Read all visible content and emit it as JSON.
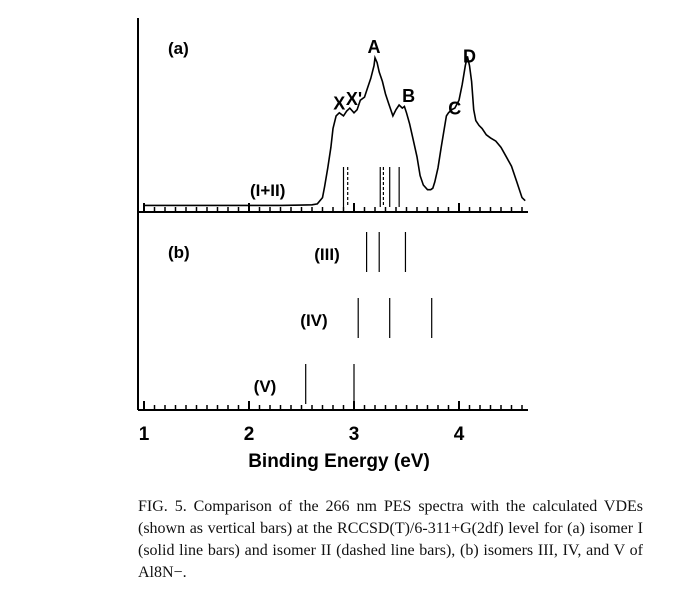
{
  "chart_data": {
    "type": "line",
    "xlabel": "Binding Energy (eV)",
    "xlim": [
      1,
      4.65
    ],
    "xticks": [
      "1",
      "2",
      "3",
      "4"
    ],
    "panel_a": {
      "label": "(a)",
      "trace_label": "(I+II)",
      "spectrum": {
        "x": [
          1.0,
          1.5,
          2.0,
          2.3,
          2.5,
          2.6,
          2.65,
          2.7,
          2.72,
          2.75,
          2.78,
          2.8,
          2.83,
          2.86,
          2.9,
          2.93,
          2.96,
          3.0,
          3.03,
          3.06,
          3.1,
          3.13,
          3.16,
          3.19,
          3.2,
          3.22,
          3.24,
          3.27,
          3.3,
          3.33,
          3.37,
          3.4,
          3.43,
          3.46,
          3.48,
          3.5,
          3.53,
          3.56,
          3.6,
          3.63,
          3.66,
          3.7,
          3.73,
          3.75,
          3.77,
          3.8,
          3.83,
          3.86,
          3.88,
          3.9,
          3.93,
          3.96,
          4.0,
          4.03,
          4.06,
          4.08,
          4.1,
          4.12,
          4.14,
          4.16,
          4.19,
          4.22,
          4.26,
          4.3,
          4.35,
          4.4,
          4.45,
          4.5,
          4.55,
          4.6,
          4.63
        ],
        "y": [
          0.01,
          0.01,
          0.01,
          0.01,
          0.012,
          0.014,
          0.02,
          0.06,
          0.13,
          0.25,
          0.38,
          0.5,
          0.58,
          0.6,
          0.58,
          0.61,
          0.63,
          0.6,
          0.62,
          0.68,
          0.7,
          0.76,
          0.82,
          0.9,
          0.95,
          0.92,
          0.86,
          0.8,
          0.72,
          0.66,
          0.58,
          0.62,
          0.65,
          0.63,
          0.64,
          0.6,
          0.53,
          0.44,
          0.32,
          0.2,
          0.14,
          0.11,
          0.11,
          0.12,
          0.16,
          0.25,
          0.38,
          0.5,
          0.58,
          0.6,
          0.62,
          0.63,
          0.68,
          0.78,
          0.9,
          0.96,
          0.9,
          0.8,
          0.62,
          0.55,
          0.52,
          0.5,
          0.46,
          0.44,
          0.42,
          0.38,
          0.32,
          0.26,
          0.16,
          0.06,
          0.04
        ]
      },
      "peaks": [
        {
          "label": "X",
          "x": 2.86,
          "y": 0.62
        },
        {
          "label": "X'",
          "x": 3.0,
          "y": 0.65
        },
        {
          "label": "A",
          "x": 3.19,
          "y": 0.98
        },
        {
          "label": "B",
          "x": 3.52,
          "y": 0.67
        },
        {
          "label": "C",
          "x": 3.96,
          "y": 0.59
        },
        {
          "label": "D",
          "x": 4.1,
          "y": 0.92
        }
      ],
      "solid_bars": [
        2.9,
        3.25,
        3.34,
        3.43
      ],
      "dashed_bars": [
        2.94,
        3.28
      ]
    },
    "panel_b": {
      "label": "(b)",
      "isomers": [
        {
          "label": "(III)",
          "bars": [
            3.12,
            3.24,
            3.49
          ]
        },
        {
          "label": "(IV)",
          "bars": [
            3.04,
            3.34,
            3.74
          ]
        },
        {
          "label": "(V)",
          "bars": [
            2.54,
            3.0
          ]
        }
      ]
    }
  },
  "caption": {
    "text": "FIG. 5. Comparison of the 266 nm PES spectra with the calculated VDEs (shown as vertical bars) at the RCCSD(T)/6-311+G(2df) level for (a) isomer I (solid line bars) and isomer II (dashed line bars), (b) isomers III, IV, and V of Al8N−."
  }
}
